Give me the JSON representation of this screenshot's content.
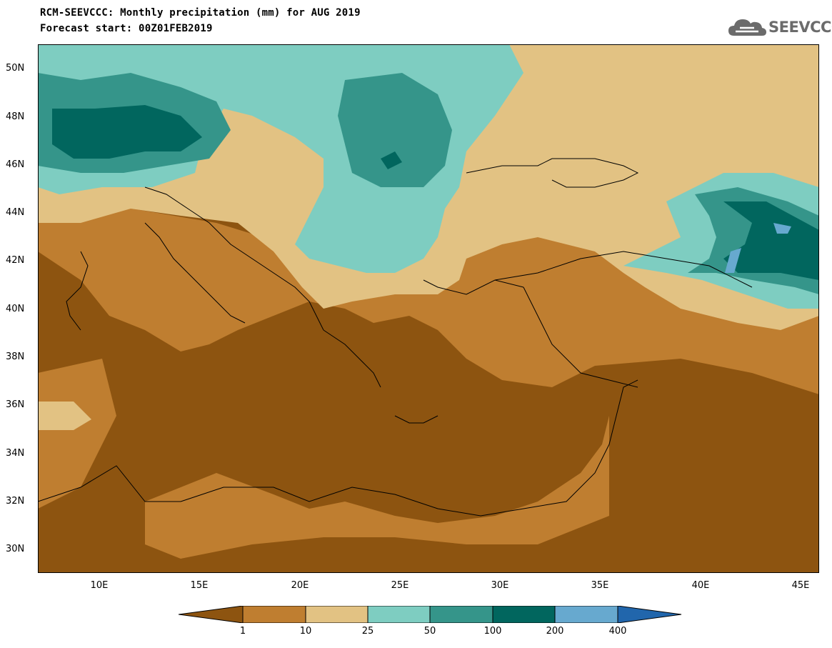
{
  "title_line1": "RCM-SEEVCCC: Monthly precipitation (mm) for AUG 2019",
  "title_line2": "Forecast start: 00Z01FEB2019",
  "logo": {
    "text": "SEEVCCC",
    "icon": "cloud-icon"
  },
  "lat_ticks": [
    "50N",
    "48N",
    "46N",
    "44N",
    "42N",
    "40N",
    "38N",
    "36N",
    "34N",
    "32N",
    "30N"
  ],
  "lon_ticks": [
    "10E",
    "15E",
    "20E",
    "25E",
    "30E",
    "35E",
    "40E",
    "45E"
  ],
  "colorbar": {
    "labels": [
      "1",
      "10",
      "25",
      "50",
      "100",
      "200",
      "400"
    ],
    "colors": [
      "#8d5410",
      "#bf7e30",
      "#e2c283",
      "#7ecdc1",
      "#35958a",
      "#01665e",
      "#67a9cf",
      "#2166ac"
    ]
  },
  "map_extent": {
    "lon": [
      7,
      46
    ],
    "lat": [
      29,
      51
    ]
  }
}
